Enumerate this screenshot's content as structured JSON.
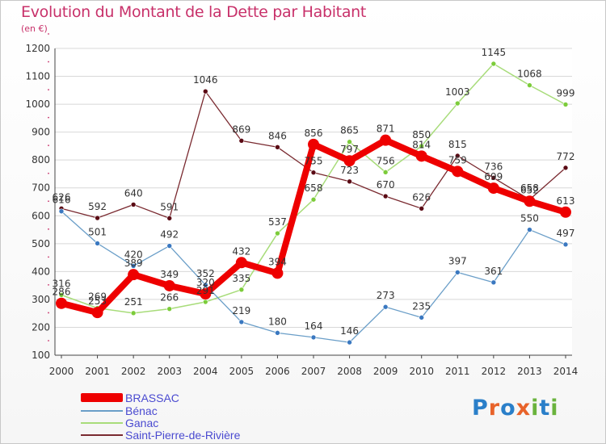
{
  "title": "Evolution du Montant de la Dette par Habitant",
  "unit": "(en €)",
  "logo": {
    "letters": [
      "P",
      "r",
      "o",
      "x",
      "i",
      "t",
      "i"
    ],
    "colors": [
      "#2a7fc9",
      "#e8632a",
      "#2a7fc9",
      "#e8632a",
      "#6ab33d",
      "#2a7fc9",
      "#6ab33d"
    ]
  },
  "chart_data": {
    "type": "line",
    "title": "Evolution du Montant de la Dette par Habitant",
    "ylabel": "(en €)",
    "xlabel": "",
    "x": [
      "2000",
      "2001",
      "2002",
      "2003",
      "2004",
      "2005",
      "2006",
      "2007",
      "2008",
      "2009",
      "2010",
      "2011",
      "2012",
      "2013",
      "2014"
    ],
    "yticks": [
      "100",
      "200",
      "300",
      "400",
      "500",
      "600",
      "700",
      "800",
      "900",
      "1000",
      "1100",
      "1200"
    ],
    "ylim": [
      100,
      1200
    ],
    "grid": "horizontal",
    "legend_placement": "bottom-left",
    "series": [
      {
        "name": "Saint-Pierre-de-Rivière",
        "color": "#7a2a30",
        "marker": "#5a0a14",
        "width": 1.3,
        "r": 3,
        "values": [
          626,
          592,
          640,
          591,
          1046,
          869,
          846,
          755,
          723,
          670,
          626,
          815,
          736,
          658,
          772
        ],
        "labels": [
          "626",
          "592",
          "640",
          "591",
          "1046",
          "869",
          "846",
          "755",
          "723",
          "670",
          "626",
          "815",
          "736",
          "658",
          "772"
        ]
      },
      {
        "name": "Ganac",
        "color": "#a8dc7a",
        "marker": "#7ccc3a",
        "width": 1.5,
        "r": 3,
        "values": [
          316,
          269,
          251,
          266,
          291,
          335,
          537,
          658,
          865,
          756,
          850,
          1003,
          1145,
          1068,
          999
        ],
        "labels": [
          "316",
          "269",
          "251",
          "266",
          "291",
          "335",
          "537",
          "658",
          "865",
          "756",
          "850",
          "1003",
          "1145",
          "1068",
          "999"
        ]
      },
      {
        "name": "Bénac",
        "color": "#6a9ec8",
        "marker": "#3a78c0",
        "width": 1.3,
        "r": 3,
        "values": [
          616,
          501,
          420,
          492,
          352,
          219,
          180,
          164,
          146,
          273,
          235,
          397,
          361,
          550,
          497
        ],
        "labels": [
          "616",
          "501",
          "420",
          "492",
          "352",
          "219",
          "180",
          "164",
          "146",
          "273",
          "235",
          "397",
          "361",
          "550",
          "497"
        ]
      },
      {
        "name": "BRASSAC",
        "color": "#ee0000",
        "marker": "#ee0000",
        "width": 8,
        "r": 7,
        "values": [
          286,
          253,
          389,
          349,
          320,
          432,
          394,
          856,
          797,
          871,
          814,
          759,
          699,
          652,
          613
        ],
        "labels": [
          "286",
          "253",
          "389",
          "349",
          "320",
          "432",
          "394",
          "856",
          "797",
          "871",
          "814",
          "759",
          "699",
          "652",
          "613"
        ]
      }
    ],
    "legend": [
      "BRASSAC",
      "Bénac",
      "Ganac",
      "Saint-Pierre-de-Rivière"
    ]
  }
}
